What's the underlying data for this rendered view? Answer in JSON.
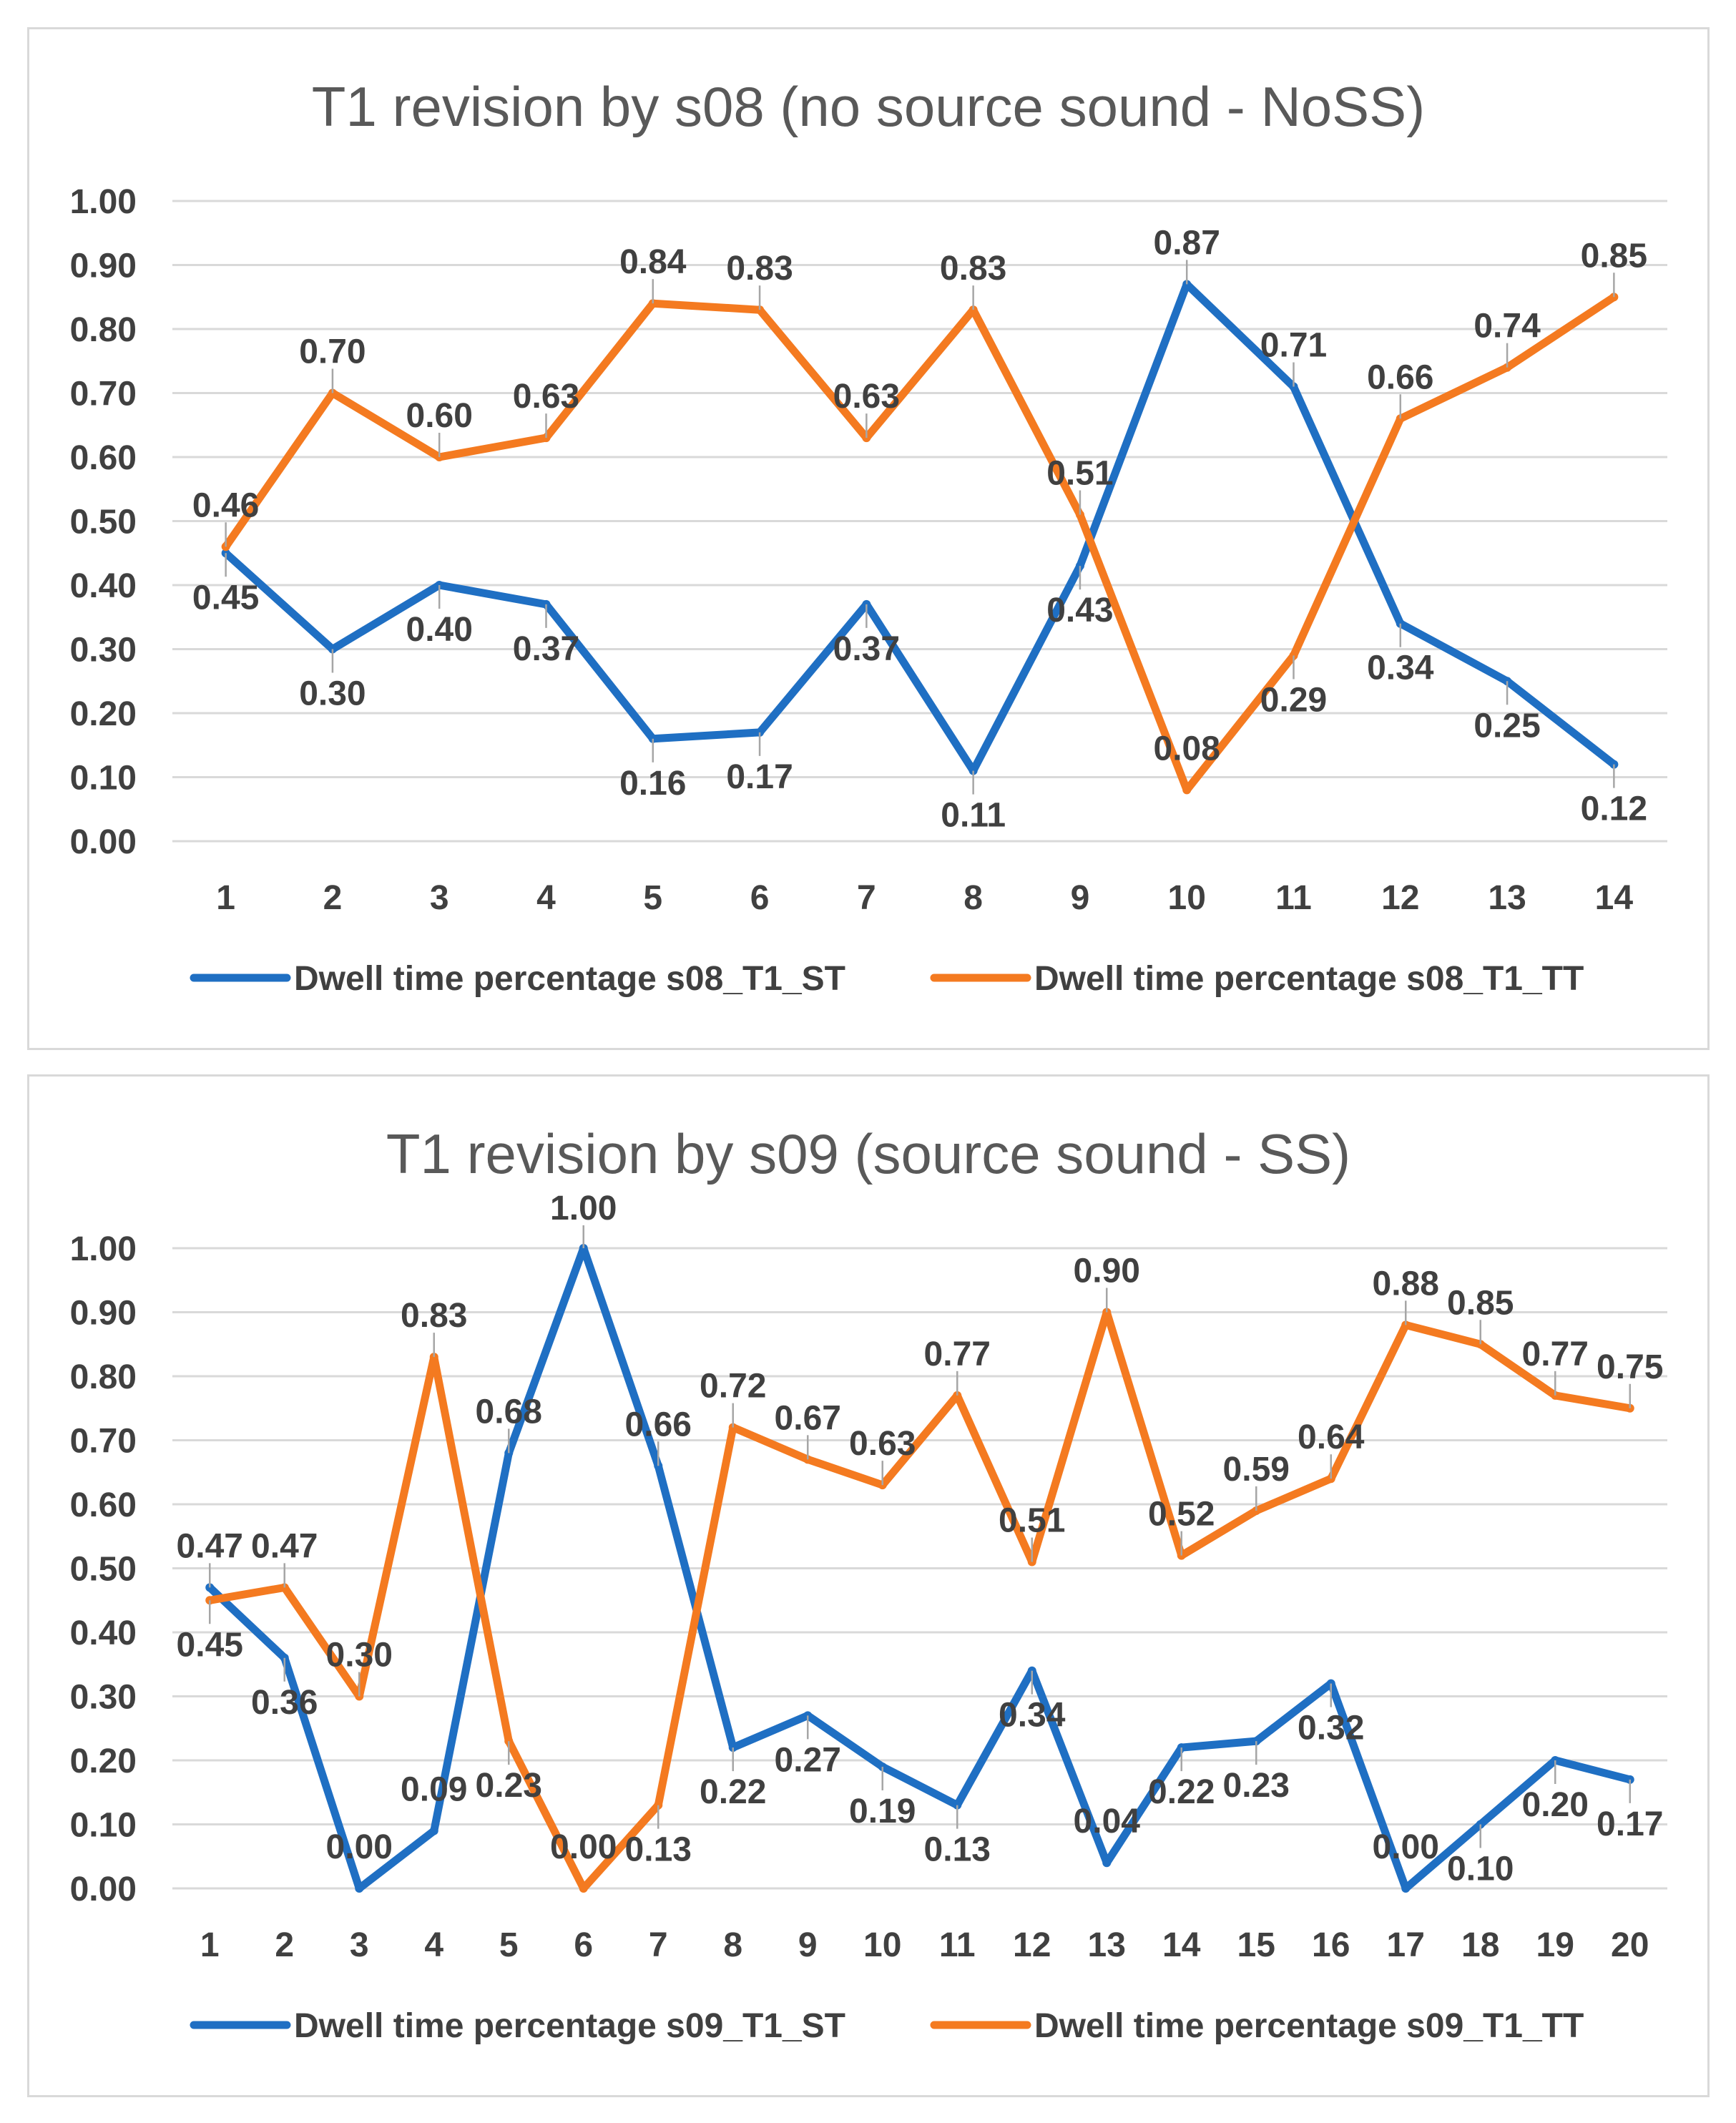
{
  "chart_data": [
    {
      "type": "line",
      "title": "T1 revision by s08 (no source sound - NoSS)",
      "xlabel": "",
      "ylabel": "",
      "ylim": [
        0,
        1
      ],
      "grid": true,
      "legend": "bottom",
      "categories": [
        "1",
        "2",
        "3",
        "4",
        "5",
        "6",
        "7",
        "8",
        "9",
        "10",
        "11",
        "12",
        "13",
        "14"
      ],
      "y_ticks": [
        "0.00",
        "0.10",
        "0.20",
        "0.30",
        "0.40",
        "0.50",
        "0.60",
        "0.70",
        "0.80",
        "0.90",
        "1.00"
      ],
      "series": [
        {
          "name": "Dwell time percentage s08_T1_ST",
          "color": "#1f6fc3",
          "values": [
            0.45,
            0.3,
            0.4,
            0.37,
            0.16,
            0.17,
            0.37,
            0.11,
            0.43,
            0.87,
            0.71,
            0.34,
            0.25,
            0.12
          ],
          "labels": [
            "0.45",
            "0.30",
            "0.40",
            "0.37",
            "0.16",
            "0.17",
            "0.37",
            "0.11",
            "0.43",
            "0.87",
            "0.71",
            "0.34",
            "0.25",
            "0.12"
          ]
        },
        {
          "name": "Dwell time percentage s08_T1_TT",
          "color": "#f47a20",
          "values": [
            0.46,
            0.7,
            0.6,
            0.63,
            0.84,
            0.83,
            0.63,
            0.83,
            0.51,
            0.08,
            0.29,
            0.66,
            0.74,
            0.85
          ],
          "labels": [
            "0.46",
            "0.70",
            "0.60",
            "0.63",
            "0.84",
            "0.83",
            "0.63",
            "0.83",
            "0.51",
            "0.08",
            "0.29",
            "0.66",
            "0.74",
            "0.85"
          ]
        }
      ]
    },
    {
      "type": "line",
      "title": "T1 revision by s09 (source sound - SS)",
      "xlabel": "",
      "ylabel": "",
      "ylim": [
        0,
        1
      ],
      "grid": true,
      "legend": "bottom",
      "categories": [
        "1",
        "2",
        "3",
        "4",
        "5",
        "6",
        "7",
        "8",
        "9",
        "10",
        "11",
        "12",
        "13",
        "14",
        "15",
        "16",
        "17",
        "18",
        "19",
        "20"
      ],
      "y_ticks": [
        "0.00",
        "0.10",
        "0.20",
        "0.30",
        "0.40",
        "0.50",
        "0.60",
        "0.70",
        "0.80",
        "0.90",
        "1.00"
      ],
      "series": [
        {
          "name": "Dwell time percentage s09_T1_ST",
          "color": "#1f6fc3",
          "values": [
            0.47,
            0.36,
            0.0,
            0.09,
            0.68,
            1.0,
            0.66,
            0.22,
            0.27,
            0.19,
            0.13,
            0.34,
            0.04,
            0.22,
            0.23,
            0.32,
            0.0,
            0.1,
            0.2,
            0.17
          ],
          "labels": [
            "0.47",
            "0.36",
            "0.00",
            "0.09",
            "0.68",
            "1.00",
            "0.66",
            "0.22",
            "0.27",
            "0.19",
            "0.13",
            "0.34",
            "0.04",
            "0.22",
            "0.23",
            "0.32",
            "0.00",
            "0.10",
            "0.20",
            "0.17"
          ]
        },
        {
          "name": "Dwell time percentage s09_T1_TT",
          "color": "#f47a20",
          "values": [
            0.45,
            0.47,
            0.3,
            0.83,
            0.23,
            0.0,
            0.13,
            0.72,
            0.67,
            0.63,
            0.77,
            0.51,
            0.9,
            0.52,
            0.59,
            0.64,
            0.88,
            0.85,
            0.77,
            0.75
          ],
          "labels": [
            "0.45",
            "0.47",
            "0.30",
            "0.83",
            "0.23",
            "0.00",
            "0.13",
            "0.72",
            "0.67",
            "0.63",
            "0.77",
            "0.51",
            "0.90",
            "0.52",
            "0.59",
            "0.64",
            "0.88",
            "0.85",
            "0.77",
            "0.75"
          ]
        }
      ]
    }
  ]
}
